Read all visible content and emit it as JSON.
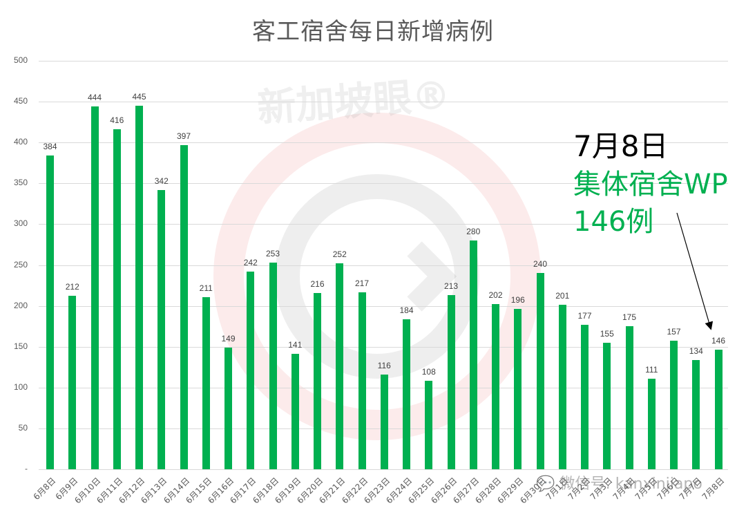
{
  "chart_data": {
    "type": "bar",
    "title": "客工宿舍每日新增病例",
    "xlabel": "",
    "ylabel": "",
    "ylim": [
      0,
      500
    ],
    "yticks": [
      "-",
      "50",
      "100",
      "150",
      "200",
      "250",
      "300",
      "350",
      "400",
      "450",
      "500"
    ],
    "grid": true,
    "legend": null,
    "bar_color": "#00b050",
    "categories": [
      "6月8日",
      "6月9日",
      "6月10日",
      "6月11日",
      "6月12日",
      "6月13日",
      "6月14日",
      "6月15日",
      "6月16日",
      "6月17日",
      "6月18日",
      "6月19日",
      "6月20日",
      "6月21日",
      "6月22日",
      "6月23日",
      "6月24日",
      "6月25日",
      "6月26日",
      "6月27日",
      "6月28日",
      "6月29日",
      "6月30日",
      "7月1日",
      "7月2日",
      "7月3日",
      "7月4日",
      "7月5日",
      "7月6日",
      "7月7日",
      "7月8日"
    ],
    "values": [
      384,
      212,
      444,
      416,
      445,
      342,
      397,
      211,
      149,
      242,
      253,
      141,
      216,
      252,
      217,
      116,
      184,
      108,
      213,
      280,
      202,
      196,
      240,
      201,
      177,
      155,
      175,
      111,
      157,
      134,
      146
    ],
    "annotations": [
      {
        "target": "7月8日",
        "lines": [
          "7月8日",
          "集体宿舍WP",
          "146例"
        ],
        "arrow": true
      }
    ]
  },
  "annotation": {
    "date": "7月8日",
    "line2": "集体宿舍WP",
    "line3": "146例",
    "date_color": "#000000",
    "text_color": "#00b050"
  },
  "watermark": {
    "brand": "新加坡眼®",
    "footer": "微信号: kanxinjiapo"
  }
}
